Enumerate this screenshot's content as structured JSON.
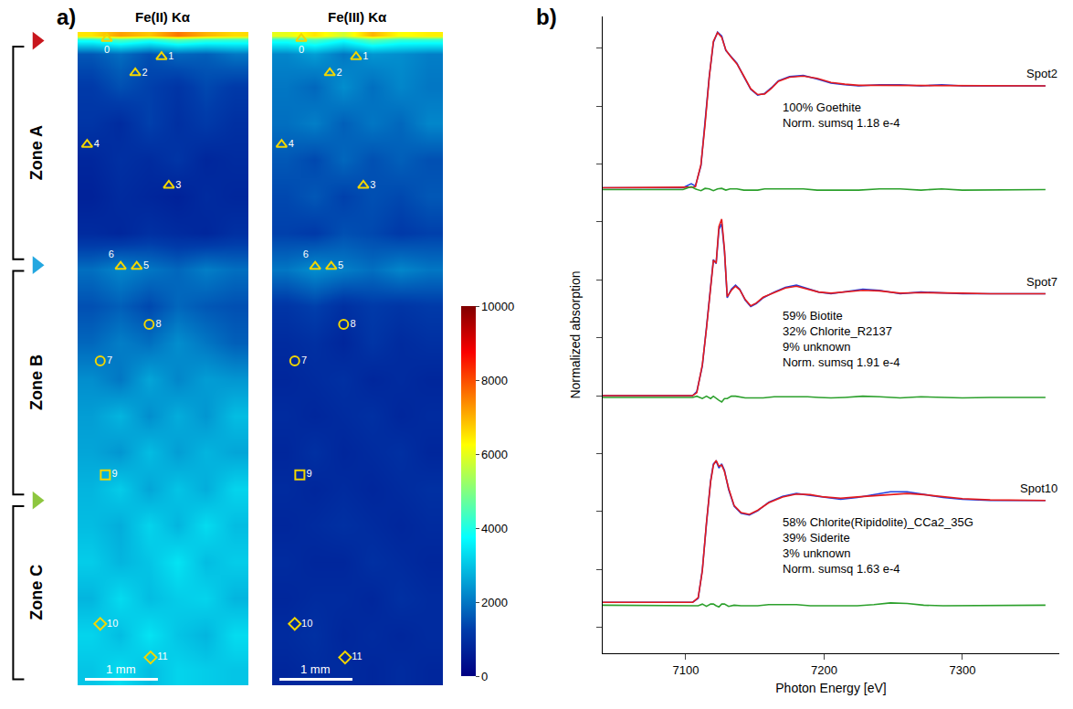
{
  "chart_data": [
    {
      "panel": "a)",
      "type": "heatmap",
      "xlim": [
        0,
        2.34
      ],
      "ylim": [
        8.94,
        0
      ],
      "tick_labels": false,
      "x_edges": [
        0,
        0.39,
        0.78,
        1.17,
        1.56,
        1.95,
        2.34
      ],
      "y_edges": [
        0,
        0.1,
        0.5,
        1.0,
        1.5,
        2.0,
        2.5,
        3.0,
        3.5,
        4.0,
        4.5,
        5.0,
        5.5,
        6.0,
        6.5,
        7.0,
        7.5,
        8.0,
        8.5,
        8.94
      ],
      "maps": [
        {
          "title": "Fe(II) Kα",
          "z": [
            [
              6500,
              7200,
              6800,
              7600,
              7000,
              6600
            ],
            [
              1600,
              1900,
              1500,
              1800,
              1700,
              2000
            ],
            [
              1200,
              1500,
              1300,
              1100,
              1400,
              1200
            ],
            [
              1100,
              900,
              1300,
              1000,
              1200,
              1000
            ],
            [
              800,
              1000,
              900,
              1100,
              800,
              900
            ],
            [
              700,
              900,
              800,
              700,
              900,
              800
            ],
            [
              900,
              800,
              1000,
              900,
              800,
              1000
            ],
            [
              1900,
              2200,
              2000,
              1800,
              2100,
              1900
            ],
            [
              1500,
              1700,
              1400,
              1800,
              1600,
              1500
            ],
            [
              1800,
              2100,
              1900,
              2300,
              2000,
              1700
            ],
            [
              2300,
              2000,
              2600,
              2200,
              2500,
              2400
            ],
            [
              2500,
              2800,
              2300,
              2700,
              2400,
              2900
            ],
            [
              2600,
              2400,
              2900,
              2500,
              2800,
              2600
            ],
            [
              2800,
              3100,
              2600,
              3000,
              2700,
              3200
            ],
            [
              2900,
              2700,
              3200,
              2800,
              3300,
              2900
            ],
            [
              3100,
              2800,
              3000,
              3400,
              2900,
              3100
            ],
            [
              2800,
              3300,
              2900,
              3100,
              3200,
              2800
            ],
            [
              3200,
              2900,
              3400,
              3000,
              2800,
              3300
            ],
            [
              3000,
              3300,
              2900,
              3200,
              3100,
              3000
            ]
          ]
        },
        {
          "title": "Fe(III) Kα",
          "z": [
            [
              6000,
              6500,
              5800,
              7000,
              6200,
              6400
            ],
            [
              2200,
              2500,
              2000,
              2400,
              2300,
              2100
            ],
            [
              2000,
              1800,
              2300,
              1900,
              2200,
              2000
            ],
            [
              1900,
              2100,
              1700,
              2000,
              1800,
              2200
            ],
            [
              1600,
              1400,
              1800,
              1500,
              1700,
              1500
            ],
            [
              1400,
              1600,
              1300,
              1500,
              1400,
              1600
            ],
            [
              1300,
              1200,
              1500,
              1400,
              1200,
              1300
            ],
            [
              2000,
              2300,
              2100,
              1900,
              2200,
              2000
            ],
            [
              1100,
              1300,
              1000,
              1200,
              1100,
              1200
            ],
            [
              900,
              1000,
              800,
              1100,
              900,
              1000
            ],
            [
              800,
              900,
              1000,
              800,
              900,
              800
            ],
            [
              900,
              800,
              900,
              1000,
              800,
              900
            ],
            [
              800,
              1000,
              800,
              900,
              1000,
              800
            ],
            [
              900,
              800,
              900,
              800,
              900,
              1000
            ],
            [
              800,
              900,
              1000,
              900,
              800,
              900
            ],
            [
              900,
              800,
              800,
              1000,
              900,
              800
            ],
            [
              800,
              900,
              900,
              800,
              1000,
              900
            ],
            [
              900,
              1000,
              800,
              900,
              800,
              900
            ],
            [
              800,
              900,
              900,
              800,
              900,
              800
            ]
          ]
        }
      ],
      "colorbar": {
        "zlim": [
          0,
          10000
        ],
        "ticks": [
          0,
          2000,
          4000,
          6000,
          8000,
          10000
        ]
      },
      "scale_bar": {
        "length": 1,
        "label": "1 mm"
      },
      "zones": [
        {
          "label": "Zone A",
          "start": 0.12,
          "color": "#c8161d"
        },
        {
          "label": "Zone B",
          "start": 3.19,
          "color": "#23a7e0"
        },
        {
          "label": "Zone C",
          "start": 6.41,
          "color": "#8dc63f"
        }
      ],
      "spots": {
        "color": "#f2d600",
        "points": [
          {
            "label": "0",
            "x": 0.4,
            "y": 0.09,
            "marker": "triangle"
          },
          {
            "label": "1",
            "x": 1.15,
            "y": 0.34,
            "marker": "triangle"
          },
          {
            "label": "2",
            "x": 0.79,
            "y": 0.56,
            "marker": "triangle"
          },
          {
            "label": "3",
            "x": 1.25,
            "y": 2.1,
            "marker": "triangle"
          },
          {
            "label": "4",
            "x": 0.13,
            "y": 1.54,
            "marker": "triangle"
          },
          {
            "label": "5",
            "x": 0.81,
            "y": 3.21,
            "marker": "triangle"
          },
          {
            "label": "6",
            "x": 0.59,
            "y": 3.21,
            "marker": "triangle"
          },
          {
            "label": "7",
            "x": 0.31,
            "y": 4.5,
            "marker": "circle"
          },
          {
            "label": "8",
            "x": 0.98,
            "y": 4.0,
            "marker": "circle"
          },
          {
            "label": "9",
            "x": 0.38,
            "y": 6.06,
            "marker": "square"
          },
          {
            "label": "10",
            "x": 0.31,
            "y": 8.1,
            "marker": "diamond"
          },
          {
            "label": "11",
            "x": 1.0,
            "y": 8.56,
            "marker": "diamond"
          }
        ]
      }
    },
    {
      "panel": "b)",
      "type": "line",
      "xlabel": "Photon Energy [eV]",
      "ylabel": "Normalized absorption",
      "xlim": [
        7040,
        7370
      ],
      "ylim": [
        -0.45,
        10.55
      ],
      "xticks": [
        7100,
        7200,
        7300
      ],
      "yticks": [
        0,
        1,
        2,
        3,
        4,
        5,
        6,
        7,
        8,
        9,
        10
      ],
      "tick_labels": "x",
      "grid": false,
      "spectra": [
        {
          "name": "Spot2",
          "x": [
            7040,
            7098,
            7104,
            7107,
            7111,
            7114,
            7117,
            7120,
            7123,
            7126,
            7129,
            7132,
            7137,
            7142,
            7147,
            7152,
            7157,
            7162,
            7167,
            7175,
            7185,
            7195,
            7205,
            7215,
            7225,
            7240,
            7255,
            7270,
            7285,
            7300,
            7320,
            7340,
            7360
          ],
          "series": [
            {
              "color": "#1f3fe0",
              "values": [
                7.59,
                7.59,
                7.66,
                7.62,
                7.97,
                8.71,
                9.51,
                10.1,
                10.28,
                10.21,
                9.96,
                9.88,
                9.74,
                9.51,
                9.29,
                9.19,
                9.22,
                9.32,
                9.44,
                9.51,
                9.53,
                9.47,
                9.4,
                9.37,
                9.35,
                9.37,
                9.37,
                9.35,
                9.37,
                9.35,
                9.35,
                9.35,
                9.35
              ]
            },
            {
              "color": "#e41a1c",
              "values": [
                7.59,
                7.59,
                7.6,
                7.61,
                7.99,
                8.69,
                9.5,
                10.12,
                10.27,
                10.19,
                9.97,
                9.87,
                9.73,
                9.52,
                9.3,
                9.2,
                9.21,
                9.31,
                9.43,
                9.5,
                9.52,
                9.48,
                9.41,
                9.38,
                9.36,
                9.36,
                9.36,
                9.36,
                9.36,
                9.36,
                9.36,
                9.35,
                9.35
              ]
            },
            {
              "color": "#2ca02c",
              "values": [
                7.56,
                7.56,
                7.61,
                7.57,
                7.54,
                7.58,
                7.57,
                7.54,
                7.57,
                7.58,
                7.55,
                7.57,
                7.57,
                7.55,
                7.55,
                7.55,
                7.57,
                7.57,
                7.57,
                7.57,
                7.57,
                7.55,
                7.55,
                7.55,
                7.55,
                7.57,
                7.57,
                7.55,
                7.57,
                7.55,
                7.55,
                7.56,
                7.56
              ]
            }
          ],
          "lines": [
            "100% Goethite",
            "Norm. sumsq 1.18 e-4"
          ]
        },
        {
          "name": "Spot7",
          "x": [
            7040,
            7098,
            7105,
            7108,
            7112,
            7115,
            7118,
            7120,
            7122,
            7124,
            7126,
            7128,
            7130,
            7133,
            7136,
            7139,
            7143,
            7147,
            7151,
            7156,
            7164,
            7172,
            7180,
            7188,
            7196,
            7205,
            7215,
            7228,
            7240,
            7255,
            7270,
            7285,
            7300,
            7320,
            7340,
            7360
          ],
          "series": [
            {
              "color": "#1f3fe0",
              "values": [
                4.0,
                4.0,
                4.0,
                4.07,
                4.51,
                5.18,
                5.91,
                6.35,
                6.28,
                6.87,
                6.97,
                6.5,
                5.69,
                5.84,
                5.91,
                5.84,
                5.65,
                5.54,
                5.59,
                5.69,
                5.79,
                5.87,
                5.91,
                5.85,
                5.79,
                5.76,
                5.79,
                5.84,
                5.82,
                5.76,
                5.79,
                5.78,
                5.76,
                5.76,
                5.76,
                5.76
              ]
            },
            {
              "color": "#e41a1c",
              "values": [
                4.0,
                4.0,
                4.0,
                4.05,
                4.53,
                5.16,
                5.93,
                6.33,
                6.3,
                6.92,
                7.05,
                6.52,
                5.71,
                5.82,
                5.89,
                5.83,
                5.66,
                5.55,
                5.6,
                5.7,
                5.78,
                5.86,
                5.89,
                5.84,
                5.79,
                5.77,
                5.79,
                5.82,
                5.81,
                5.77,
                5.78,
                5.78,
                5.77,
                5.76,
                5.76,
                5.76
              ]
            },
            {
              "color": "#2ca02c",
              "values": [
                3.97,
                3.97,
                3.97,
                3.99,
                3.95,
                3.99,
                3.95,
                3.99,
                3.95,
                3.92,
                3.89,
                3.95,
                3.95,
                3.99,
                3.99,
                3.98,
                3.96,
                3.96,
                3.96,
                3.96,
                3.98,
                3.98,
                3.99,
                3.98,
                3.97,
                3.96,
                3.97,
                3.99,
                3.98,
                3.96,
                3.98,
                3.97,
                3.96,
                3.97,
                3.97,
                3.97
              ]
            }
          ],
          "lines": [
            "59% Biotite",
            "32% Chlorite_R2137",
            "9% unknown",
            "Norm. sumsq 1.91 e-4"
          ]
        },
        {
          "name": "Spot10",
          "x": [
            7040,
            7098,
            7105,
            7109,
            7112,
            7115,
            7118,
            7120,
            7122,
            7124,
            7126,
            7128,
            7131,
            7135,
            7140,
            7146,
            7152,
            7160,
            7170,
            7180,
            7190,
            7200,
            7212,
            7224,
            7236,
            7248,
            7260,
            7272,
            7286,
            7300,
            7320,
            7340,
            7360
          ],
          "series": [
            {
              "color": "#1f3fe0",
              "values": [
                0.43,
                0.43,
                0.43,
                0.5,
                0.99,
                1.79,
                2.53,
                2.82,
                2.87,
                2.75,
                2.82,
                2.71,
                2.38,
                2.09,
                1.97,
                1.94,
                2.01,
                2.16,
                2.26,
                2.31,
                2.28,
                2.24,
                2.21,
                2.24,
                2.29,
                2.34,
                2.34,
                2.29,
                2.24,
                2.21,
                2.19,
                2.19,
                2.19
              ]
            },
            {
              "color": "#e41a1c",
              "values": [
                0.43,
                0.43,
                0.43,
                0.51,
                0.97,
                1.81,
                2.51,
                2.8,
                2.88,
                2.78,
                2.8,
                2.69,
                2.4,
                2.1,
                1.98,
                1.95,
                2.02,
                2.15,
                2.25,
                2.3,
                2.29,
                2.25,
                2.23,
                2.25,
                2.27,
                2.3,
                2.31,
                2.29,
                2.25,
                2.22,
                2.2,
                2.19,
                2.19
              ]
            },
            {
              "color": "#2ca02c",
              "values": [
                0.38,
                0.38,
                0.38,
                0.37,
                0.4,
                0.36,
                0.4,
                0.4,
                0.37,
                0.35,
                0.4,
                0.4,
                0.36,
                0.38,
                0.37,
                0.37,
                0.37,
                0.39,
                0.39,
                0.39,
                0.37,
                0.37,
                0.36,
                0.37,
                0.39,
                0.42,
                0.41,
                0.38,
                0.37,
                0.37,
                0.37,
                0.38,
                0.38
              ]
            }
          ],
          "lines": [
            "58% Chlorite(Ripidolite)_CCa2_35G",
            "39% Siderite",
            "3% unknown",
            "Norm. sumsq 1.63 e-4"
          ]
        }
      ]
    }
  ]
}
